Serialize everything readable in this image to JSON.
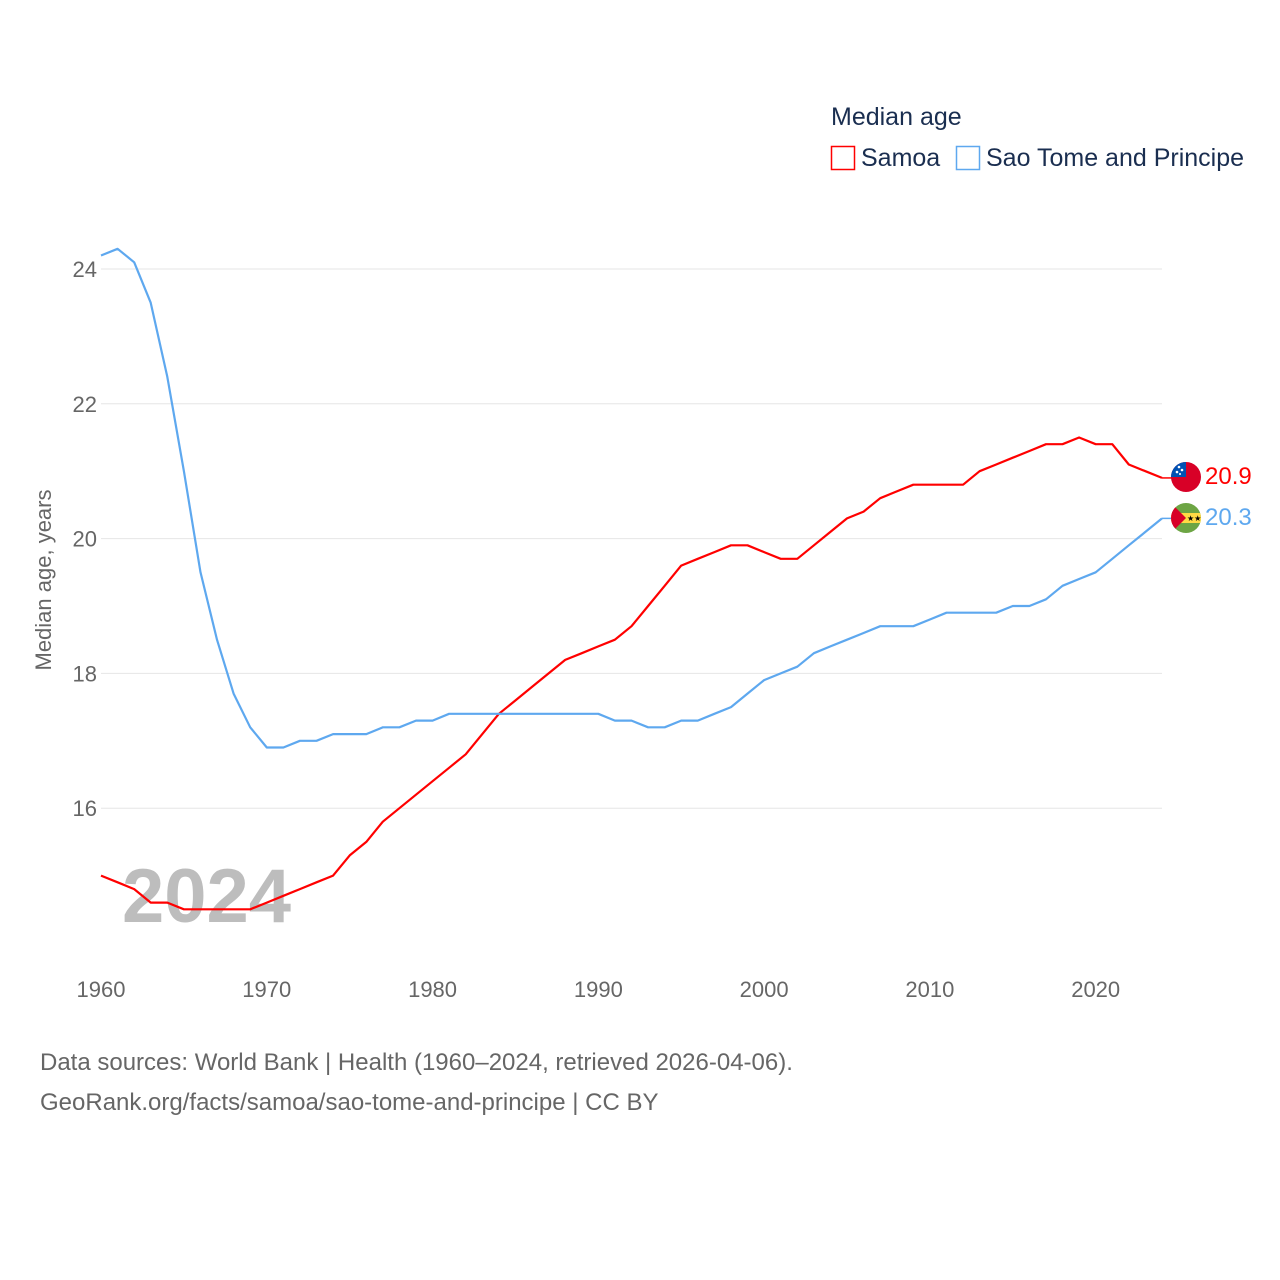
{
  "chart_data": {
    "type": "line",
    "title": "Median age",
    "ylabel": "Median age, years",
    "xlabel": "",
    "year_watermark": "2024",
    "xlim": [
      1960,
      2024
    ],
    "ylim": [
      14,
      24.5
    ],
    "x_ticks": [
      "1960",
      "1970",
      "1980",
      "1990",
      "2000",
      "2010",
      "2020"
    ],
    "y_ticks": [
      "16",
      "18",
      "20",
      "22",
      "24"
    ],
    "grid": true,
    "legend_placement": "top-right",
    "x": [
      1960,
      1961,
      1962,
      1963,
      1964,
      1965,
      1966,
      1967,
      1968,
      1969,
      1970,
      1971,
      1972,
      1973,
      1974,
      1975,
      1976,
      1977,
      1978,
      1979,
      1980,
      1981,
      1982,
      1983,
      1984,
      1985,
      1986,
      1987,
      1988,
      1989,
      1990,
      1991,
      1992,
      1993,
      1994,
      1995,
      1996,
      1997,
      1998,
      1999,
      2000,
      2001,
      2002,
      2003,
      2004,
      2005,
      2006,
      2007,
      2008,
      2009,
      2010,
      2011,
      2012,
      2013,
      2014,
      2015,
      2016,
      2017,
      2018,
      2019,
      2020,
      2021,
      2022,
      2023,
      2024
    ],
    "series": [
      {
        "name": "Samoa",
        "color": "#ff0000",
        "end_label": "20.9",
        "values": [
          15.0,
          14.9,
          14.8,
          14.6,
          14.6,
          14.5,
          14.5,
          14.5,
          14.5,
          14.5,
          14.6,
          14.7,
          14.8,
          14.9,
          15.0,
          15.3,
          15.5,
          15.8,
          16.0,
          16.2,
          16.4,
          16.6,
          16.8,
          17.1,
          17.4,
          17.6,
          17.8,
          18.0,
          18.2,
          18.3,
          18.4,
          18.5,
          18.7,
          19.0,
          19.3,
          19.6,
          19.7,
          19.8,
          19.9,
          19.9,
          19.8,
          19.7,
          19.7,
          19.9,
          20.1,
          20.3,
          20.4,
          20.6,
          20.7,
          20.8,
          20.8,
          20.8,
          20.8,
          21.0,
          21.1,
          21.2,
          21.3,
          21.4,
          21.4,
          21.5,
          21.4,
          21.4,
          21.1,
          21.0,
          20.9
        ]
      },
      {
        "name": "Sao Tome and Principe",
        "color": "#5ea8ef",
        "end_label": "20.3",
        "values": [
          24.2,
          24.3,
          24.1,
          23.5,
          22.4,
          21.0,
          19.5,
          18.5,
          17.7,
          17.2,
          16.9,
          16.9,
          17.0,
          17.0,
          17.1,
          17.1,
          17.1,
          17.2,
          17.2,
          17.3,
          17.3,
          17.4,
          17.4,
          17.4,
          17.4,
          17.4,
          17.4,
          17.4,
          17.4,
          17.4,
          17.4,
          17.3,
          17.3,
          17.2,
          17.2,
          17.3,
          17.3,
          17.4,
          17.5,
          17.7,
          17.9,
          18.0,
          18.1,
          18.3,
          18.4,
          18.5,
          18.6,
          18.7,
          18.7,
          18.7,
          18.8,
          18.9,
          18.9,
          18.9,
          18.9,
          19.0,
          19.0,
          19.1,
          19.3,
          19.4,
          19.5,
          19.7,
          19.9,
          20.1,
          20.3
        ]
      }
    ]
  },
  "footer": {
    "line1": "Data sources: World Bank | Health (1960–2024, retrieved 2026-04-06).",
    "line2": "GeoRank.org/facts/samoa/sao-tome-and-principe | CC BY"
  }
}
